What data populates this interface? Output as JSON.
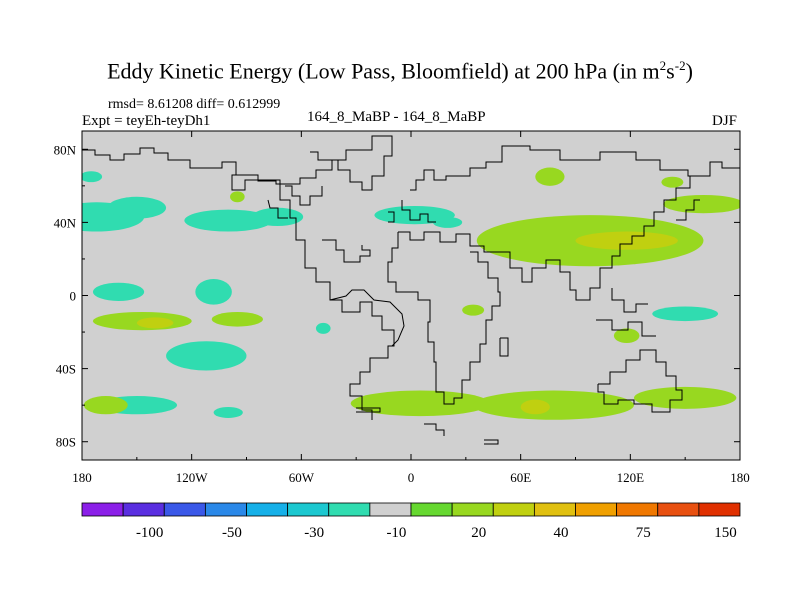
{
  "chart_data": {
    "type": "heatmap",
    "title_main": "Eddy Kinetic Energy (Low Pass, Bloomfield) at 200 hPa (in m",
    "title_exp1": "2",
    "title_mid": "s",
    "title_exp2": "-2",
    "title_end": ")",
    "stats_text": "rmsd= 8.61208 diff= 0.612999",
    "expt_text": "Expt = teyEh-teyDh1",
    "center_text": "164_8_MaBP - 164_8_MaBP",
    "season_text": "DJF",
    "x_range": [
      -180,
      180
    ],
    "y_range": [
      -90,
      90
    ],
    "x_ticks": [
      {
        "value": -180,
        "label": "180"
      },
      {
        "value": -120,
        "label": "120W"
      },
      {
        "value": -60,
        "label": "60W"
      },
      {
        "value": 0,
        "label": "0"
      },
      {
        "value": 60,
        "label": "60E"
      },
      {
        "value": 120,
        "label": "120E"
      },
      {
        "value": 180,
        "label": "180"
      }
    ],
    "y_ticks": [
      {
        "value": 80,
        "label": "80N"
      },
      {
        "value": 40,
        "label": "40N"
      },
      {
        "value": 0,
        "label": "0"
      },
      {
        "value": -40,
        "label": "40S"
      },
      {
        "value": -80,
        "label": "80S"
      }
    ],
    "background_color": "#d0d0d0",
    "colorbar": {
      "colors": [
        "#8b1fe8",
        "#5a2ee0",
        "#3a58e8",
        "#2a88e8",
        "#16b0e8",
        "#1cc8d0",
        "#30dcb0",
        "#d0d0d0",
        "#66d830",
        "#98d820",
        "#c0d010",
        "#e0c010",
        "#f0a000",
        "#f07800",
        "#e85010",
        "#e03000"
      ],
      "labels": [
        {
          "boundary": 2,
          "label": "-100"
        },
        {
          "boundary": 4,
          "label": "-50"
        },
        {
          "boundary": 6,
          "label": "-30"
        },
        {
          "boundary": 8,
          "label": "-10"
        },
        {
          "boundary": 10,
          "label": "20"
        },
        {
          "boundary": 12,
          "label": "40"
        },
        {
          "boundary": 14,
          "label": "75"
        },
        {
          "boundary": 16,
          "label": "150"
        }
      ]
    },
    "regions": [
      {
        "id": "np-40n-cyan",
        "level": 6,
        "lon": -172,
        "lat": 43,
        "rx": 26,
        "ry": 8
      },
      {
        "id": "np-45n-cyan",
        "level": 6,
        "lon": -150,
        "lat": 48,
        "rx": 16,
        "ry": 6
      },
      {
        "id": "na-40n-cyan",
        "level": 6,
        "lon": -100,
        "lat": 41,
        "rx": 24,
        "ry": 6
      },
      {
        "id": "na-45n-cyan",
        "level": 6,
        "lon": -73,
        "lat": 43,
        "rx": 14,
        "ry": 5
      },
      {
        "id": "arctic-cyan",
        "level": 6,
        "lon": -175,
        "lat": 65,
        "rx": 6,
        "ry": 3
      },
      {
        "id": "eur-45n-cyan",
        "level": 6,
        "lon": 2,
        "lat": 44,
        "rx": 22,
        "ry": 5
      },
      {
        "id": "med-40n-cyan",
        "level": 6,
        "lon": 20,
        "lat": 40,
        "rx": 8,
        "ry": 3
      },
      {
        "id": "ep-0-cyan",
        "level": 6,
        "lon": -160,
        "lat": 2,
        "rx": 14,
        "ry": 5
      },
      {
        "id": "ep-10s-cyan",
        "level": 6,
        "lon": -108,
        "lat": 2,
        "rx": 10,
        "ry": 7
      },
      {
        "id": "sp-30s-cyan",
        "level": 6,
        "lon": -112,
        "lat": -33,
        "rx": 22,
        "ry": 8
      },
      {
        "id": "so-60s-cyan",
        "level": 6,
        "lon": -150,
        "lat": -60,
        "rx": 22,
        "ry": 5
      },
      {
        "id": "so-65s-cyan-b",
        "level": 6,
        "lon": -100,
        "lat": -64,
        "rx": 8,
        "ry": 3
      },
      {
        "id": "sa-cyan",
        "level": 6,
        "lon": -48,
        "lat": -18,
        "rx": 4,
        "ry": 3
      },
      {
        "id": "wp-10s-cyan",
        "level": 6,
        "lon": 150,
        "lat": -10,
        "rx": 18,
        "ry": 4
      },
      {
        "id": "np-45n-green-e",
        "level": 9,
        "lon": 160,
        "lat": 50,
        "rx": 22,
        "ry": 5
      },
      {
        "id": "np-65n-green",
        "level": 9,
        "lon": 143,
        "lat": 62,
        "rx": 6,
        "ry": 3
      },
      {
        "id": "asia-40n-green",
        "level": 9,
        "lon": 98,
        "lat": 30,
        "rx": 62,
        "ry": 14
      },
      {
        "id": "asia-40n-yellow",
        "level": 10,
        "lon": 118,
        "lat": 30,
        "rx": 28,
        "ry": 5
      },
      {
        "id": "asia-65n-green",
        "level": 9,
        "lon": 76,
        "lat": 65,
        "rx": 8,
        "ry": 5
      },
      {
        "id": "atl-60n-green",
        "level": 9,
        "lon": -95,
        "lat": 54,
        "rx": 4,
        "ry": 3
      },
      {
        "id": "sp-10s-green",
        "level": 9,
        "lon": -147,
        "lat": -14,
        "rx": 27,
        "ry": 5
      },
      {
        "id": "sp-10s-yellow",
        "level": 10,
        "lon": -140,
        "lat": -15,
        "rx": 10,
        "ry": 3
      },
      {
        "id": "sp-10s-green-b",
        "level": 9,
        "lon": -95,
        "lat": -13,
        "rx": 14,
        "ry": 4
      },
      {
        "id": "io-10s-green",
        "level": 9,
        "lon": 34,
        "lat": -8,
        "rx": 6,
        "ry": 3
      },
      {
        "id": "wp-15s-green",
        "level": 9,
        "lon": 118,
        "lat": -22,
        "rx": 7,
        "ry": 4
      },
      {
        "id": "so-60s-green-w",
        "level": 9,
        "lon": -167,
        "lat": -60,
        "rx": 12,
        "ry": 5
      },
      {
        "id": "so-60s-green-c",
        "level": 9,
        "lon": 5,
        "lat": -59,
        "rx": 38,
        "ry": 7
      },
      {
        "id": "so-60s-green-e",
        "level": 9,
        "lon": 78,
        "lat": -60,
        "rx": 44,
        "ry": 8
      },
      {
        "id": "so-60s-yellow",
        "level": 10,
        "lon": 68,
        "lat": -61,
        "rx": 8,
        "ry": 4
      },
      {
        "id": "so-60s-green-ee",
        "level": 9,
        "lon": 150,
        "lat": -56,
        "rx": 28,
        "ry": 6
      }
    ]
  }
}
